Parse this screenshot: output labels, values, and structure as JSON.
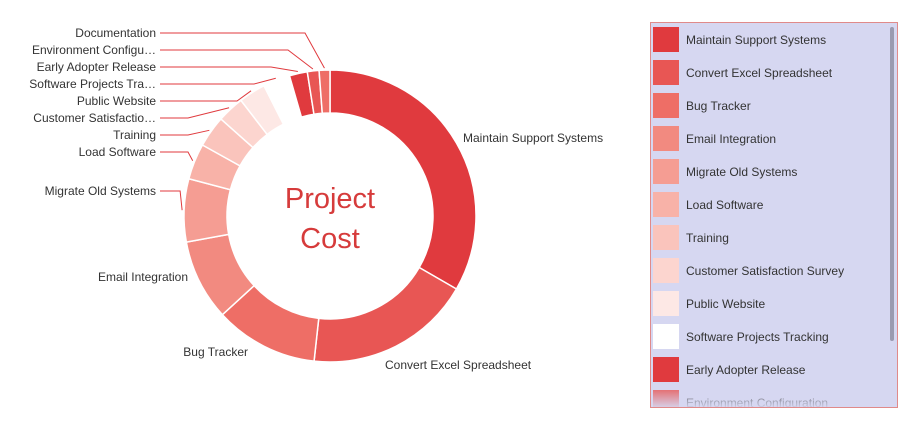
{
  "chart_data": {
    "type": "pie",
    "donut": true,
    "center_label": [
      "Project",
      "Cost"
    ],
    "series": [
      {
        "name": "Maintain Support Systems",
        "value": 33.5,
        "label": "Maintain Support Systems",
        "color": "#e03a3e"
      },
      {
        "name": "Convert Excel Spreadsheet",
        "value": 18.5,
        "label": "Convert Excel Spreadsheet",
        "color": "#e85654"
      },
      {
        "name": "Bug Tracker",
        "value": 11.5,
        "label": "Bug Tracker",
        "color": "#ee6e66"
      },
      {
        "name": "Email Integration",
        "value": 9.0,
        "label": "Email Integration",
        "color": "#f28a80"
      },
      {
        "name": "Migrate Old Systems",
        "value": 7.0,
        "label": "Migrate Old Systems",
        "color": "#f59d93"
      },
      {
        "name": "Load Software",
        "value": 4.0,
        "label": "Load Software",
        "color": "#f8b2a8"
      },
      {
        "name": "Training",
        "value": 3.5,
        "label": "Training",
        "color": "#fac4bc"
      },
      {
        "name": "Customer Satisfaction Survey",
        "value": 3.0,
        "label": "Customer Satisfactio…",
        "color": "#fcd5cf"
      },
      {
        "name": "Public Website",
        "value": 3.0,
        "label": "Public Website",
        "color": "#fde8e5"
      },
      {
        "name": "Software Projects Tracking",
        "value": 3.0,
        "label": "Software Projects Tra…",
        "color": "#ffffff"
      },
      {
        "name": "Early Adopter Release",
        "value": 2.0,
        "label": "Early Adopter Release",
        "color": "#e03a3e"
      },
      {
        "name": "Environment Configuration",
        "value": 1.3,
        "label": "Environment Configu…",
        "color": "#e85654"
      },
      {
        "name": "Documentation",
        "value": 1.2,
        "label": "Documentation",
        "color": "#ee6e66"
      }
    ],
    "legend": {
      "position": "right",
      "items": [
        {
          "label": "Maintain Support Systems",
          "color": "#e03a3e"
        },
        {
          "label": "Convert Excel Spreadsheet",
          "color": "#e85654"
        },
        {
          "label": "Bug Tracker",
          "color": "#ee6e66"
        },
        {
          "label": "Email Integration",
          "color": "#f28a80"
        },
        {
          "label": "Migrate Old Systems",
          "color": "#f59d93"
        },
        {
          "label": "Load Software",
          "color": "#f8b2a8"
        },
        {
          "label": "Training",
          "color": "#fac4bc"
        },
        {
          "label": "Customer Satisfaction Survey",
          "color": "#fcd5cf"
        },
        {
          "label": "Public Website",
          "color": "#fde8e5"
        },
        {
          "label": "Software Projects Tracking",
          "color": "#ffffff"
        },
        {
          "label": "Early Adopter Release",
          "color": "#e03a3e"
        },
        {
          "label": "Environment Configuration",
          "color": "#e85654"
        }
      ]
    }
  }
}
